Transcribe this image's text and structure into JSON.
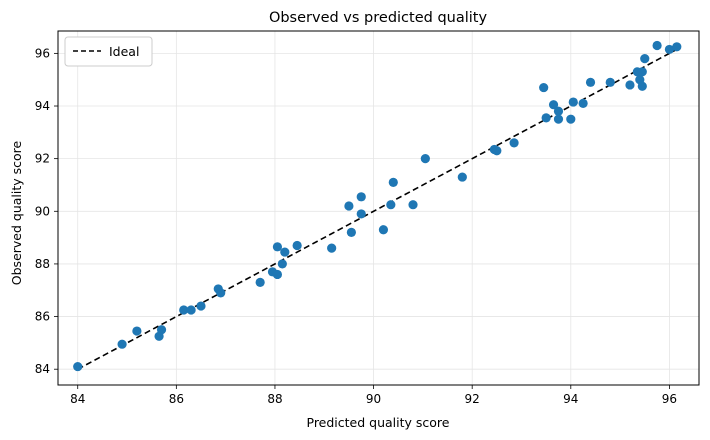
{
  "chart_data": {
    "type": "scatter",
    "title": "Observed vs predicted quality",
    "xlabel": "Predicted quality score",
    "ylabel": "Observed quality score",
    "xlim": [
      83.6,
      96.6
    ],
    "ylim": [
      83.4,
      96.85
    ],
    "xticks": [
      84,
      86,
      88,
      90,
      92,
      94,
      96
    ],
    "yticks": [
      84,
      86,
      88,
      90,
      92,
      94,
      96
    ],
    "grid": true,
    "legend": {
      "placement": "top-left",
      "entries": [
        "Ideal"
      ]
    },
    "colors": {
      "points": "#1f77b4",
      "ideal_line": "#000000",
      "grid": "#e5e5e5"
    },
    "ideal_line": {
      "name": "Ideal",
      "x": [
        84.0,
        96.2
      ],
      "y": [
        84.0,
        96.2
      ],
      "style": "dashed"
    },
    "series": [
      {
        "points": [
          [
            84.0,
            84.1
          ],
          [
            84.9,
            84.95
          ],
          [
            85.2,
            85.45
          ],
          [
            85.65,
            85.25
          ],
          [
            85.7,
            85.5
          ],
          [
            86.15,
            86.25
          ],
          [
            86.3,
            86.25
          ],
          [
            86.5,
            86.4
          ],
          [
            86.85,
            87.05
          ],
          [
            86.9,
            86.9
          ],
          [
            87.7,
            87.3
          ],
          [
            87.95,
            87.7
          ],
          [
            88.05,
            87.6
          ],
          [
            88.05,
            88.65
          ],
          [
            88.15,
            88.0
          ],
          [
            88.2,
            88.45
          ],
          [
            88.45,
            88.7
          ],
          [
            89.15,
            88.6
          ],
          [
            89.5,
            90.2
          ],
          [
            89.55,
            89.2
          ],
          [
            89.75,
            89.9
          ],
          [
            89.75,
            90.55
          ],
          [
            90.2,
            89.3
          ],
          [
            90.35,
            90.25
          ],
          [
            90.4,
            91.1
          ],
          [
            90.8,
            90.25
          ],
          [
            91.05,
            92.0
          ],
          [
            91.8,
            91.3
          ],
          [
            92.45,
            92.35
          ],
          [
            92.5,
            92.3
          ],
          [
            92.85,
            92.6
          ],
          [
            93.45,
            94.7
          ],
          [
            93.5,
            93.55
          ],
          [
            93.65,
            94.05
          ],
          [
            93.75,
            93.5
          ],
          [
            93.75,
            93.8
          ],
          [
            94.0,
            93.5
          ],
          [
            94.05,
            94.15
          ],
          [
            94.25,
            94.1
          ],
          [
            94.4,
            94.9
          ],
          [
            94.8,
            94.9
          ],
          [
            95.2,
            94.8
          ],
          [
            95.35,
            95.3
          ],
          [
            95.4,
            95.0
          ],
          [
            95.45,
            94.75
          ],
          [
            95.45,
            95.3
          ],
          [
            95.5,
            95.8
          ],
          [
            95.75,
            96.3
          ],
          [
            96.0,
            96.15
          ],
          [
            96.15,
            96.25
          ]
        ]
      }
    ]
  }
}
